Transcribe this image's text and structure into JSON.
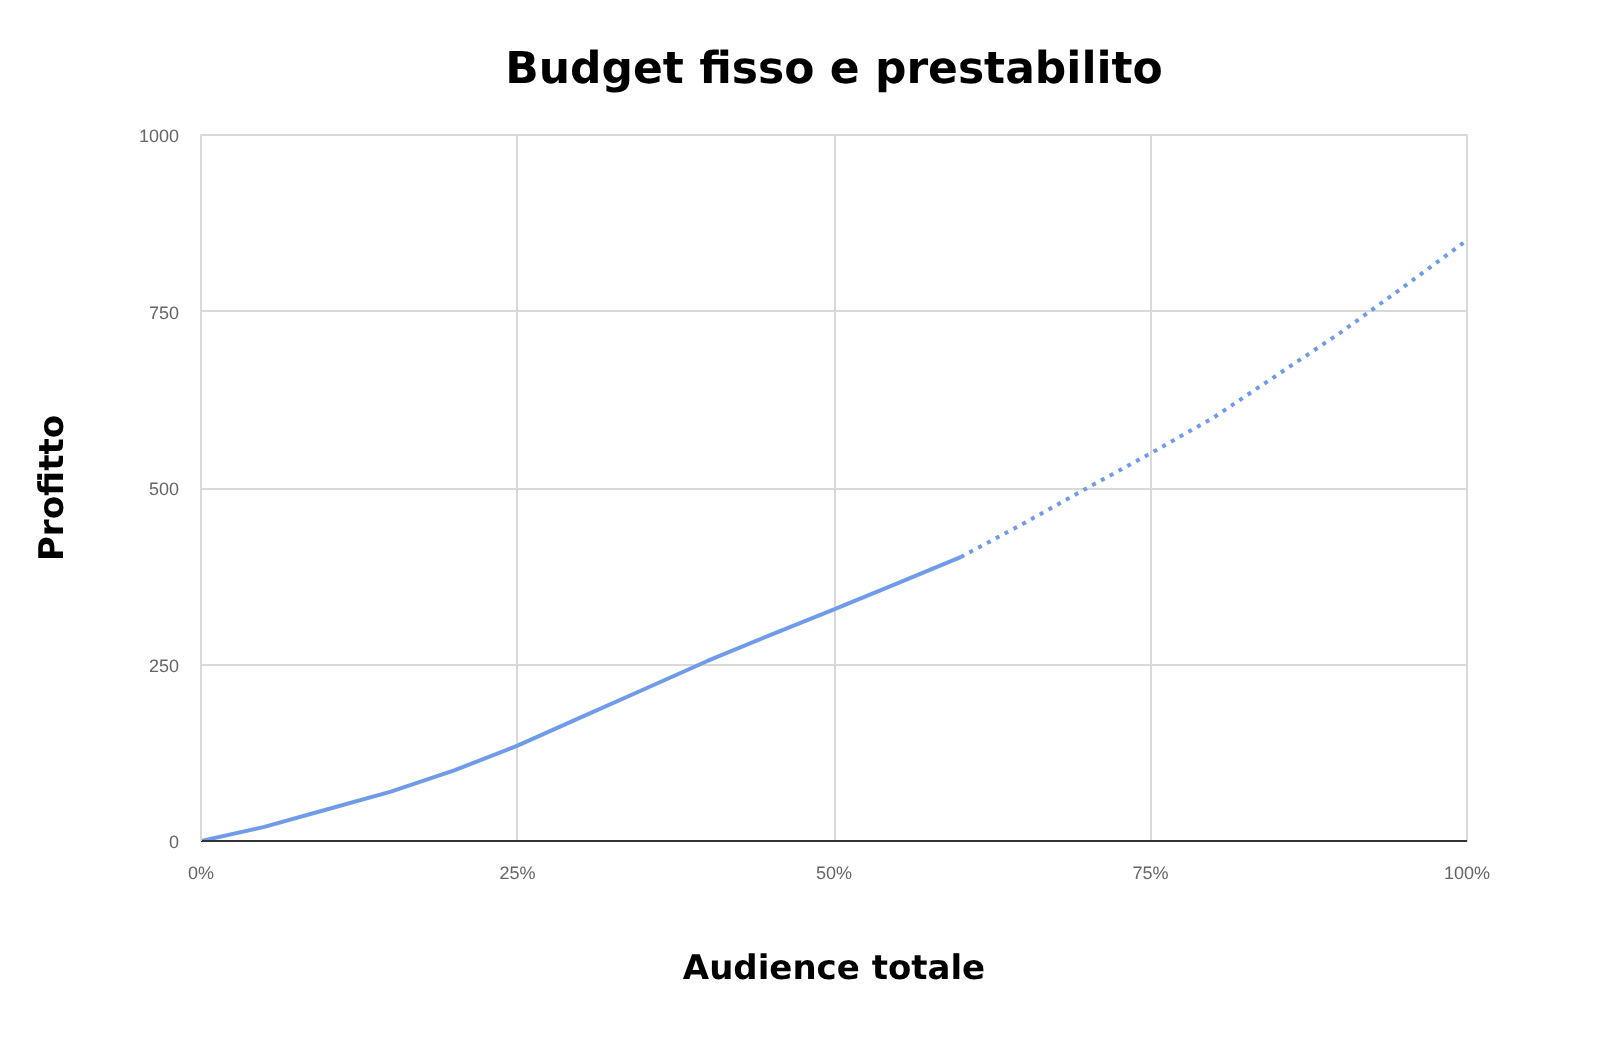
{
  "chart_data": {
    "type": "line",
    "title": "Budget fisso e prestabilito",
    "xlabel": "Audience totale",
    "ylabel": "Profitto",
    "xlim": [
      0,
      100
    ],
    "ylim": [
      0,
      1000
    ],
    "xticks": [
      {
        "value": 0,
        "label": "0%"
      },
      {
        "value": 25,
        "label": "25%"
      },
      {
        "value": 50,
        "label": "50%"
      },
      {
        "value": 75,
        "label": "75%"
      },
      {
        "value": 100,
        "label": "100%"
      }
    ],
    "yticks": [
      0,
      250,
      500,
      750,
      1000
    ],
    "grid": true,
    "marker": "none",
    "series": [
      {
        "color": "#6f9be8",
        "line_style": "solid",
        "x": [
          0,
          5,
          10,
          15,
          20,
          25,
          30,
          35,
          40,
          45,
          50,
          55,
          60
        ],
        "values": [
          0,
          20,
          45,
          70,
          100,
          135,
          175,
          215,
          255,
          292,
          328,
          365,
          402
        ]
      },
      {
        "color": "#6f9be8",
        "line_style": "dotted",
        "x": [
          60,
          65,
          70,
          75,
          80,
          85,
          90,
          95,
          100
        ],
        "values": [
          402,
          450,
          500,
          549,
          600,
          660,
          720,
          785,
          851
        ]
      }
    ]
  }
}
